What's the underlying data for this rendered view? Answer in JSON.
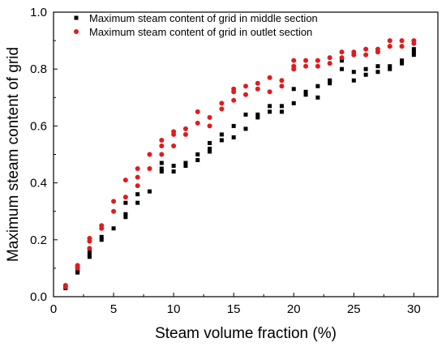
{
  "chart_data": {
    "type": "scatter",
    "xlabel": "Steam volume fraction (%)",
    "ylabel": "Maximum steam content of grid",
    "xlim": [
      0,
      32
    ],
    "ylim": [
      0,
      1.0
    ],
    "xticks": [
      "0",
      "5",
      "10",
      "15",
      "20",
      "25",
      "30"
    ],
    "yticks": [
      "0.0",
      "0.2",
      "0.4",
      "0.6",
      "0.8",
      "1.0"
    ],
    "legend_position": "top-left",
    "grid": false,
    "series": [
      {
        "name": "Maximum steam content of grid in middle section",
        "color": "#000000",
        "marker": "square",
        "x": [
          1,
          1,
          2,
          2,
          2,
          3,
          3,
          3,
          4,
          4,
          5,
          6,
          6,
          6,
          7,
          7,
          8,
          9,
          9,
          9,
          10,
          10,
          11,
          11,
          12,
          12,
          13,
          13,
          13,
          14,
          14,
          15,
          15,
          16,
          16,
          17,
          17,
          18,
          18,
          19,
          19,
          20,
          20,
          21,
          21,
          22,
          22,
          23,
          23,
          24,
          24,
          25,
          25,
          26,
          26,
          27,
          27,
          28,
          28,
          29,
          29,
          30,
          30,
          30
        ],
        "y": [
          0.03,
          0.035,
          0.085,
          0.09,
          0.095,
          0.14,
          0.15,
          0.16,
          0.2,
          0.21,
          0.24,
          0.28,
          0.29,
          0.33,
          0.33,
          0.36,
          0.37,
          0.44,
          0.45,
          0.47,
          0.44,
          0.46,
          0.46,
          0.47,
          0.48,
          0.5,
          0.51,
          0.52,
          0.54,
          0.55,
          0.57,
          0.56,
          0.6,
          0.59,
          0.64,
          0.63,
          0.64,
          0.65,
          0.67,
          0.65,
          0.67,
          0.68,
          0.73,
          0.71,
          0.72,
          0.7,
          0.74,
          0.75,
          0.76,
          0.8,
          0.83,
          0.76,
          0.79,
          0.78,
          0.8,
          0.79,
          0.81,
          0.8,
          0.81,
          0.82,
          0.83,
          0.85,
          0.86,
          0.87
        ]
      },
      {
        "name": "Maximum steam content of grid in outlet section",
        "color": "#e31a1c",
        "marker": "circle",
        "x": [
          1,
          1,
          2,
          2,
          2,
          3,
          3,
          3,
          4,
          4,
          5,
          5,
          6,
          6,
          7,
          7,
          7,
          8,
          8,
          9,
          9,
          9,
          10,
          10,
          10,
          11,
          11,
          12,
          12,
          13,
          13,
          14,
          14,
          15,
          15,
          15,
          16,
          16,
          17,
          17,
          18,
          18,
          19,
          19,
          20,
          20,
          20,
          21,
          21,
          22,
          22,
          23,
          23,
          24,
          24,
          25,
          25,
          26,
          26,
          27,
          27,
          28,
          28,
          29,
          29,
          30,
          30
        ],
        "y": [
          0.035,
          0.04,
          0.1,
          0.105,
          0.11,
          0.17,
          0.195,
          0.205,
          0.24,
          0.25,
          0.3,
          0.335,
          0.35,
          0.41,
          0.39,
          0.42,
          0.45,
          0.45,
          0.5,
          0.5,
          0.53,
          0.55,
          0.53,
          0.57,
          0.58,
          0.57,
          0.59,
          0.61,
          0.65,
          0.6,
          0.63,
          0.66,
          0.68,
          0.69,
          0.72,
          0.73,
          0.71,
          0.74,
          0.73,
          0.75,
          0.72,
          0.77,
          0.74,
          0.76,
          0.8,
          0.81,
          0.83,
          0.81,
          0.83,
          0.81,
          0.83,
          0.82,
          0.84,
          0.84,
          0.86,
          0.85,
          0.86,
          0.85,
          0.87,
          0.86,
          0.87,
          0.88,
          0.9,
          0.88,
          0.9,
          0.89,
          0.9
        ]
      }
    ]
  }
}
